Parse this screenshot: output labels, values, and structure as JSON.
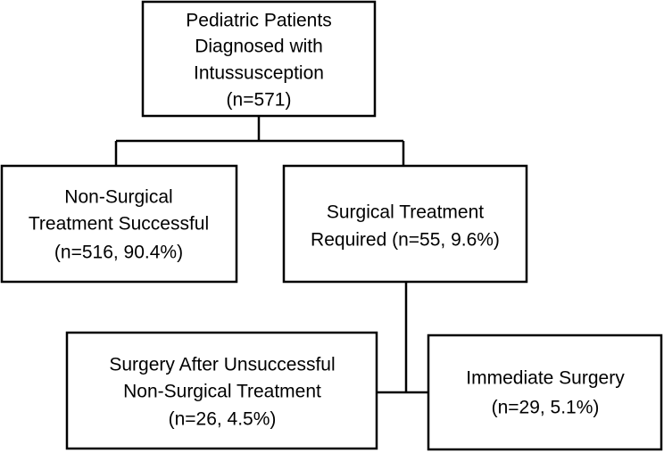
{
  "nodes": [
    {
      "lines": [
        "Pediatric Patients",
        "Diagnosed with",
        "Intussusception",
        "(n=571)"
      ]
    },
    {
      "lines": [
        "Non-Surgical",
        "Treatment Successful",
        "(n=516, 90.4%)"
      ]
    },
    {
      "lines": [
        "Surgical Treatment",
        "Required (n=55, 9.6%)"
      ]
    },
    {
      "lines": [
        "Surgery After Unsuccessful",
        "Non-Surgical Treatment",
        "(n=26, 4.5%)"
      ]
    },
    {
      "lines": [
        "Immediate Surgery",
        "(n=29, 5.1%)"
      ]
    }
  ]
}
